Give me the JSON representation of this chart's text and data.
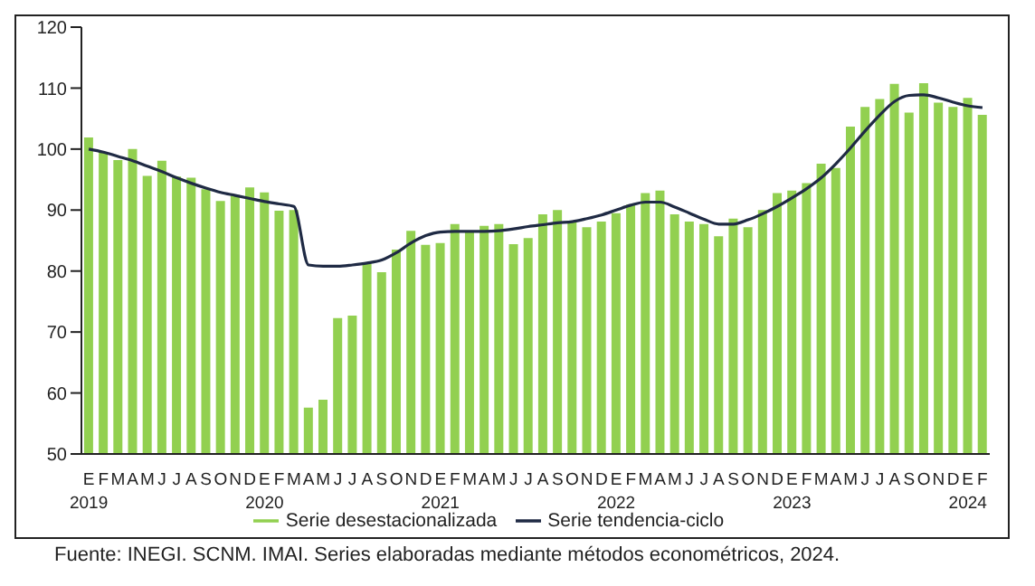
{
  "chart_data": {
    "type": "bar",
    "categories": [
      "E\n2019",
      "F",
      "M",
      "A",
      "M",
      "J",
      "J",
      "A",
      "S",
      "O",
      "N",
      "D",
      "E\n2020",
      "F",
      "M",
      "A",
      "M",
      "J",
      "J",
      "A",
      "S",
      "O",
      "N",
      "D",
      "E\n2021",
      "F",
      "M",
      "A",
      "M",
      "J",
      "J",
      "A",
      "S",
      "O",
      "N",
      "D",
      "E\n2022",
      "F",
      "M",
      "A",
      "M",
      "J",
      "J",
      "A",
      "S",
      "O",
      "N",
      "D",
      "E\n2023",
      "F",
      "M",
      "A",
      "M",
      "J",
      "J",
      "A",
      "S",
      "O",
      "N",
      "D",
      "E\n2024",
      "F"
    ],
    "series": [
      {
        "name": "Serie desestacionalizada",
        "color": "#92d050",
        "values": [
          101.9,
          99.5,
          98.2,
          100,
          95.6,
          98.1,
          95.5,
          95.3,
          93.4,
          91.5,
          92.5,
          93.7,
          92.9,
          89.9,
          90.0,
          57.6,
          58.9,
          72.3,
          72.7,
          81.2,
          79.8,
          83.5,
          86.6,
          84.3,
          84.6,
          87.7,
          86.5,
          87.4,
          87.7,
          84.4,
          85.4,
          89.3,
          90.0,
          88.1,
          87.2,
          88.1,
          89.5,
          90.9,
          92.8,
          93.2,
          89.3,
          88.1,
          87.7,
          85.7,
          88.6,
          87.2,
          90.0,
          92.8,
          93.2,
          94.4,
          97.6,
          96.9,
          103.7,
          106.9,
          108.2,
          110.7,
          106.0,
          110.8,
          107.6,
          106.9,
          108.4,
          105.6
        ]
      },
      {
        "name": "Serie tendencia-ciclo",
        "type": "line",
        "color": "#1f2a44",
        "values": [
          100,
          99.5,
          98.8,
          98.1,
          97.2,
          96.3,
          95.3,
          94.4,
          93.6,
          92.9,
          92.4,
          91.9,
          91.4,
          91.0,
          90.6,
          81.0,
          80.8,
          80.8,
          81.0,
          81.3,
          81.8,
          83.0,
          84.6,
          85.8,
          86.4,
          86.5,
          86.5,
          86.5,
          86.6,
          86.9,
          87.3,
          87.6,
          87.9,
          88.1,
          88.6,
          89.2,
          90.0,
          90.8,
          91.3,
          91.3,
          90.5,
          89.5,
          88.5,
          87.7,
          87.7,
          88.4,
          89.4,
          90.6,
          92.0,
          93.5,
          95.3,
          97.6,
          100.2,
          103.0,
          105.6,
          107.8,
          108.8,
          108.9,
          108.4,
          107.7,
          107.1,
          106.8
        ]
      }
    ],
    "ylim": [
      50,
      120
    ],
    "yticks": [
      50,
      60,
      70,
      80,
      90,
      100,
      110,
      120
    ],
    "grid": false,
    "legend": "bottom",
    "marker": "none",
    "line_style": "solid",
    "annotations": [
      "Fuente: INEGI. SCNM. IMAI. Series elaboradas mediante métodos econométricos, 2024."
    ]
  }
}
